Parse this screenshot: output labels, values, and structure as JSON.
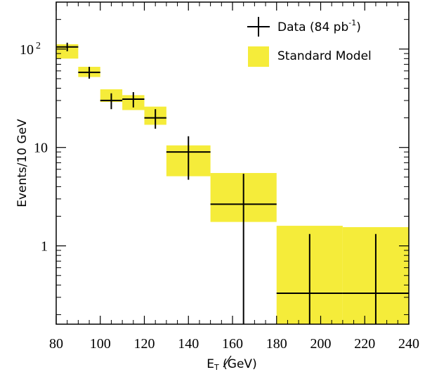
{
  "chart_data": {
    "type": "histogram",
    "xlabel": "E̸T (GeV)",
    "xlabel_main": "E",
    "xlabel_sub": "T",
    "xlabel_unit": " (GeV)",
    "ylabel": "Events/10 GeV",
    "xlim": [
      80,
      240
    ],
    "ylim": [
      0.16,
      300
    ],
    "yscale": "log",
    "x_ticks": [
      80,
      100,
      120,
      140,
      160,
      180,
      200,
      220,
      240
    ],
    "y_ticks": [
      {
        "value": 1,
        "label": "1"
      },
      {
        "value": 10,
        "label": "10"
      },
      {
        "value": 100,
        "label": "10",
        "exponent": "2"
      }
    ],
    "colors": {
      "standard_model": "#f5ec3a",
      "data": "#000000"
    },
    "legend": {
      "placement": "top-right",
      "entries": [
        {
          "label": "Data (84 pb",
          "sup": "-1",
          "suffix": ")",
          "kind": "data"
        },
        {
          "label": "Standard Model",
          "kind": "standard_model"
        }
      ]
    },
    "standard_model": [
      {
        "x_low": 80,
        "x_high": 90,
        "low": 80,
        "high": 112
      },
      {
        "x_low": 90,
        "x_high": 100,
        "low": 52,
        "high": 66
      },
      {
        "x_low": 100,
        "x_high": 110,
        "low": 29,
        "high": 39
      },
      {
        "x_low": 110,
        "x_high": 120,
        "low": 24,
        "high": 34
      },
      {
        "x_low": 120,
        "x_high": 130,
        "low": 17,
        "high": 26
      },
      {
        "x_low": 130,
        "x_high": 150,
        "low": 5.1,
        "high": 10.5
      },
      {
        "x_low": 150,
        "x_high": 180,
        "low": 1.75,
        "high": 5.5
      },
      {
        "x_low": 180,
        "x_high": 210,
        "low": 0.16,
        "high": 1.6
      },
      {
        "x_low": 210,
        "x_high": 240,
        "low": 0.16,
        "high": 1.55
      }
    ],
    "data": [
      {
        "x": 85,
        "x_err": 5,
        "y": 105,
        "y_low": 95,
        "y_high": 116
      },
      {
        "x": 95,
        "x_err": 5,
        "y": 58,
        "y_low": 50,
        "y_high": 66
      },
      {
        "x": 105,
        "x_err": 5,
        "y": 30,
        "y_low": 24.5,
        "y_high": 35.5
      },
      {
        "x": 115,
        "x_err": 5,
        "y": 31,
        "y_low": 25.5,
        "y_high": 36.5
      },
      {
        "x": 125,
        "x_err": 5,
        "y": 20,
        "y_low": 15.5,
        "y_high": 24.5
      },
      {
        "x": 140,
        "x_err": 10,
        "y": 9,
        "y_low": 4.7,
        "y_high": 13
      },
      {
        "x": 165,
        "x_err": 15,
        "y": 2.65,
        "y_low": 0.16,
        "y_high": 5.4
      },
      {
        "x": 195,
        "x_err": 15,
        "y": 0.33,
        "y_low": 0.16,
        "y_high": 1.32
      },
      {
        "x": 225,
        "x_err": 15,
        "y": 0.33,
        "y_low": 0.16,
        "y_high": 1.32
      }
    ]
  }
}
